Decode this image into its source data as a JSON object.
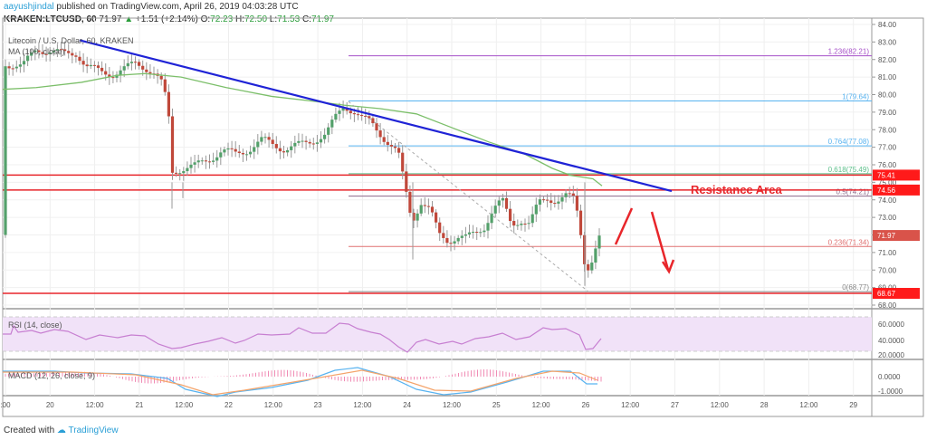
{
  "header": {
    "user": "aayushjindal",
    "published_text": "published on TradingView.com, April 26, 2019 04:03:28 UTC",
    "symbol": "KRAKEN:LTCUSD, 60",
    "last": "71.97",
    "change": "+1.51 (+2.14%)",
    "o_label": "O:",
    "o": "72.23",
    "h_label": "H:",
    "h": "72.50",
    "l_label": "L:",
    "l": "71.53",
    "c_label": "C:",
    "c": "71.97"
  },
  "legends": {
    "main": "Litecoin / U.S. Dollar, 60, KRAKEN",
    "ma": "MA (100, close)",
    "rsi": "RSI (14, close)",
    "macd": "MACD (12, 26, close, 9)"
  },
  "annotation": {
    "resistance": "Resistance Area"
  },
  "footer": {
    "created": "Created with",
    "brand": "TradingView"
  },
  "colors": {
    "up": "#53a06a",
    "down": "#c0483a",
    "trend": "#1f23d6",
    "ma": "#7cbf6a",
    "red": "#e8262b",
    "rsi": "#c77fd1",
    "macd": "#58b3f0",
    "signal": "#f4a46b",
    "hist": "#f08cb5"
  },
  "chart_data": [
    {
      "type": "candlestick",
      "title": "Litecoin / U.S. Dollar, 60, KRAKEN",
      "ylim": [
        68,
        84
      ],
      "y_ticks": [
        "84.00",
        "83.00",
        "82.00",
        "81.00",
        "80.00",
        "79.00",
        "78.00",
        "77.00",
        "76.00",
        "75.00",
        "74.00",
        "73.00",
        "72.00",
        "71.00",
        "70.00",
        "69.00",
        "68.00"
      ],
      "x_ticks": [
        ":00",
        "20",
        "12:00",
        "21",
        "12:00",
        "22",
        "12:00",
        "23",
        "12:00",
        "24",
        "12:00",
        "25",
        "12:00",
        "26",
        "12:00",
        "27",
        "12:00",
        "28",
        "12:00",
        "29"
      ],
      "fib_levels": [
        {
          "label": "1.236(82.21)",
          "value": 82.21,
          "color": "#a650c8"
        },
        {
          "label": "1(79.64)",
          "value": 79.64,
          "color": "#58b3f0"
        },
        {
          "label": "0.764(77.08)",
          "value": 77.08,
          "color": "#58b3f0"
        },
        {
          "label": "0.618(75.49)",
          "value": 75.49,
          "color": "#5cbf8a"
        },
        {
          "label": "0.5(74.21)",
          "value": 74.21,
          "color": "#8d6a8a"
        },
        {
          "label": "0.236(71.34)",
          "value": 71.34,
          "color": "#e07070"
        },
        {
          "label": "0(68.77)",
          "value": 68.77,
          "color": "#888888"
        }
      ],
      "price_tags": [
        {
          "label": "75.41",
          "value": 75.41,
          "color": "#ff1a1a"
        },
        {
          "label": "74.56",
          "value": 74.56,
          "color": "#ff1a1a"
        },
        {
          "label": "71.97",
          "value": 71.97,
          "color": "#d9534a"
        },
        {
          "label": "68.67",
          "value": 68.67,
          "color": "#ff1a1a"
        }
      ],
      "horizontal_lines": [
        75.41,
        74.56,
        68.67
      ],
      "trendline": {
        "from": [
          88,
          83.1
        ],
        "to": [
          742,
          74.5
        ]
      },
      "annotation": "Resistance Area",
      "ma_period": 100
    },
    {
      "type": "line",
      "title": "RSI (14, close)",
      "y_ticks": [
        "60.0000",
        "40.0000",
        "20.0000"
      ],
      "bands": [
        70,
        30
      ]
    },
    {
      "type": "line",
      "title": "MACD (12, 26, close, 9)",
      "y_ticks": [
        "0.0000",
        "-1.0000"
      ],
      "series": [
        {
          "name": "MACD"
        },
        {
          "name": "Signal"
        },
        {
          "name": "Histogram"
        }
      ]
    }
  ]
}
